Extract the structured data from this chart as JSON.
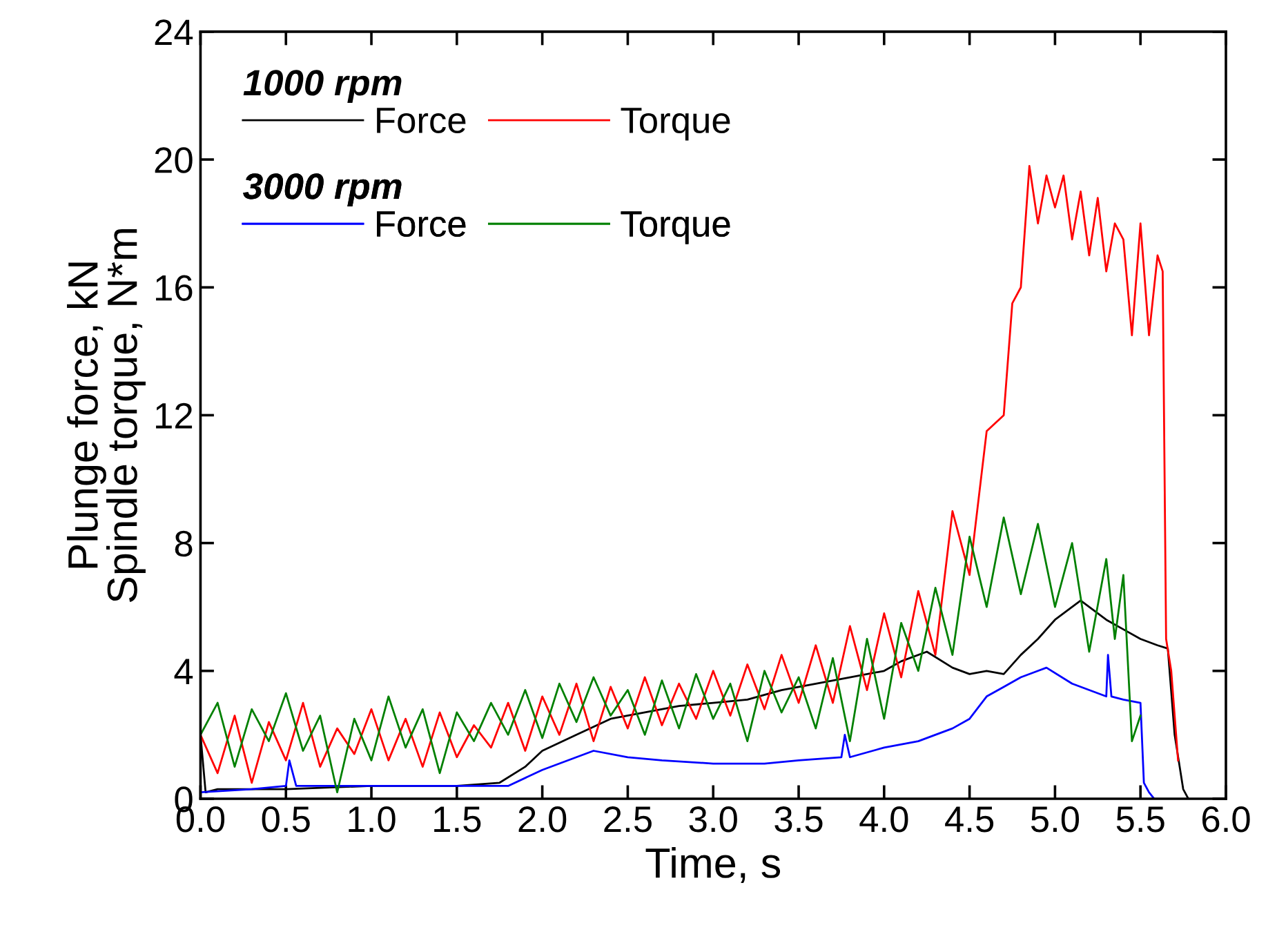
{
  "chart_data": {
    "type": "line",
    "xlabel": "Time, s",
    "ylabel": "Plunge force, kN\nSpindle torque, N*m",
    "annotations": [
      "1000 rpm",
      "3000 rpm"
    ],
    "xlim": [
      0,
      6
    ],
    "ylim": [
      0,
      24
    ],
    "xticks": [
      {
        "value": 0,
        "label": "0.0"
      },
      {
        "value": 0.5,
        "label": "0.5"
      },
      {
        "value": 1,
        "label": "1.0"
      },
      {
        "value": 1.5,
        "label": "1.5"
      },
      {
        "value": 2,
        "label": "2.0"
      },
      {
        "value": 2.5,
        "label": "2.5"
      },
      {
        "value": 3,
        "label": "3.0"
      },
      {
        "value": 3.5,
        "label": "3.5"
      },
      {
        "value": 4,
        "label": "4.0"
      },
      {
        "value": 4.5,
        "label": "4.5"
      },
      {
        "value": 5,
        "label": "5.0"
      },
      {
        "value": 5.5,
        "label": "5.5"
      },
      {
        "value": 6,
        "label": "6.0"
      }
    ],
    "yticks": [
      0,
      4,
      8,
      12,
      16,
      20,
      24
    ],
    "legend": "top left",
    "grid": false,
    "marker": "none",
    "line_style": "solid",
    "series": [
      {
        "name": "Force",
        "color": "#000000",
        "x": [
          0,
          0.03,
          0.1,
          0.5,
          1.0,
          1.5,
          1.75,
          1.9,
          2.0,
          2.2,
          2.4,
          2.6,
          2.8,
          3.0,
          3.2,
          3.4,
          3.6,
          3.8,
          4.0,
          4.1,
          4.25,
          4.4,
          4.5,
          4.6,
          4.7,
          4.8,
          4.9,
          5.0,
          5.1,
          5.15,
          5.2,
          5.3,
          5.4,
          5.5,
          5.6,
          5.66,
          5.7,
          5.75,
          5.78
        ],
        "values": [
          2.0,
          0.2,
          0.3,
          0.3,
          0.4,
          0.4,
          0.5,
          1.0,
          1.5,
          2.0,
          2.5,
          2.7,
          2.9,
          3.0,
          3.1,
          3.4,
          3.6,
          3.8,
          4.0,
          4.3,
          4.6,
          4.1,
          3.9,
          4.0,
          3.9,
          4.5,
          5.0,
          5.6,
          6.0,
          6.2,
          6.0,
          5.6,
          5.3,
          5.0,
          4.8,
          4.7,
          2.0,
          0.3,
          0
        ]
      },
      {
        "name": "Torque",
        "color": "#ff0000",
        "x": [
          0,
          0.1,
          0.2,
          0.3,
          0.4,
          0.5,
          0.6,
          0.7,
          0.8,
          0.9,
          1.0,
          1.1,
          1.2,
          1.3,
          1.4,
          1.5,
          1.6,
          1.7,
          1.8,
          1.9,
          2.0,
          2.1,
          2.2,
          2.3,
          2.4,
          2.5,
          2.6,
          2.7,
          2.8,
          2.9,
          3.0,
          3.1,
          3.2,
          3.3,
          3.4,
          3.5,
          3.6,
          3.7,
          3.8,
          3.9,
          4.0,
          4.1,
          4.2,
          4.3,
          4.4,
          4.5,
          4.6,
          4.7,
          4.75,
          4.8,
          4.85,
          4.9,
          4.95,
          5.0,
          5.05,
          5.1,
          5.15,
          5.2,
          5.25,
          5.3,
          5.35,
          5.4,
          5.45,
          5.5,
          5.55,
          5.6,
          5.63,
          5.65,
          5.68,
          5.72
        ],
        "values": [
          2.0,
          0.8,
          2.6,
          0.5,
          2.4,
          1.2,
          3.0,
          1.0,
          2.2,
          1.4,
          2.8,
          1.2,
          2.5,
          1.0,
          2.7,
          1.3,
          2.3,
          1.6,
          3.0,
          1.5,
          3.2,
          2.0,
          3.6,
          1.8,
          3.5,
          2.2,
          3.8,
          2.3,
          3.6,
          2.5,
          4.0,
          2.6,
          4.2,
          2.8,
          4.5,
          3.0,
          4.8,
          3.0,
          5.4,
          3.4,
          5.8,
          3.8,
          6.5,
          4.5,
          9.0,
          7.0,
          11.5,
          12.0,
          15.5,
          16.0,
          19.8,
          18.0,
          19.5,
          18.5,
          19.5,
          17.5,
          19.0,
          17.0,
          18.8,
          16.5,
          18.0,
          17.5,
          14.5,
          18.0,
          14.5,
          17.0,
          16.5,
          5.0,
          4.0,
          1.2
        ]
      },
      {
        "name": "Force",
        "color": "#0000ff",
        "x": [
          0,
          0.3,
          0.5,
          0.52,
          0.56,
          0.6,
          1.0,
          1.5,
          1.8,
          2.0,
          2.3,
          2.5,
          2.7,
          3.0,
          3.3,
          3.5,
          3.75,
          3.77,
          3.8,
          4.0,
          4.2,
          4.4,
          4.5,
          4.6,
          4.7,
          4.8,
          4.9,
          4.95,
          5.1,
          5.3,
          5.31,
          5.33,
          5.4,
          5.5,
          5.52,
          5.55,
          5.58
        ],
        "values": [
          0.2,
          0.3,
          0.4,
          1.2,
          0.4,
          0.4,
          0.4,
          0.4,
          0.4,
          0.9,
          1.5,
          1.3,
          1.2,
          1.1,
          1.1,
          1.2,
          1.3,
          2.0,
          1.3,
          1.6,
          1.8,
          2.2,
          2.5,
          3.2,
          3.5,
          3.8,
          4.0,
          4.1,
          3.6,
          3.2,
          4.5,
          3.2,
          3.1,
          3.0,
          0.5,
          0.2,
          0
        ]
      },
      {
        "name": "Torque",
        "color": "#008000",
        "x": [
          0,
          0.1,
          0.2,
          0.3,
          0.4,
          0.5,
          0.6,
          0.7,
          0.8,
          0.9,
          1.0,
          1.1,
          1.2,
          1.3,
          1.4,
          1.5,
          1.6,
          1.7,
          1.8,
          1.9,
          2.0,
          2.1,
          2.2,
          2.3,
          2.4,
          2.5,
          2.6,
          2.7,
          2.8,
          2.9,
          3.0,
          3.1,
          3.2,
          3.3,
          3.4,
          3.5,
          3.6,
          3.7,
          3.8,
          3.9,
          4.0,
          4.1,
          4.2,
          4.3,
          4.4,
          4.5,
          4.6,
          4.7,
          4.8,
          4.9,
          5.0,
          5.1,
          5.2,
          5.3,
          5.35,
          5.4,
          5.45,
          5.5
        ],
        "values": [
          2.0,
          3.0,
          1.0,
          2.8,
          1.8,
          3.3,
          1.5,
          2.6,
          0.2,
          2.5,
          1.2,
          3.2,
          1.6,
          2.8,
          0.8,
          2.7,
          1.8,
          3.0,
          2.0,
          3.4,
          1.9,
          3.6,
          2.4,
          3.8,
          2.6,
          3.4,
          2.0,
          3.7,
          2.2,
          3.9,
          2.5,
          3.6,
          1.8,
          4.0,
          2.7,
          3.8,
          2.2,
          4.4,
          1.8,
          5.0,
          2.5,
          5.5,
          4.0,
          6.6,
          4.5,
          8.2,
          6.0,
          8.8,
          6.4,
          8.6,
          6.0,
          8.0,
          4.6,
          7.5,
          5.0,
          7.0,
          1.8,
          2.6
        ]
      }
    ]
  }
}
